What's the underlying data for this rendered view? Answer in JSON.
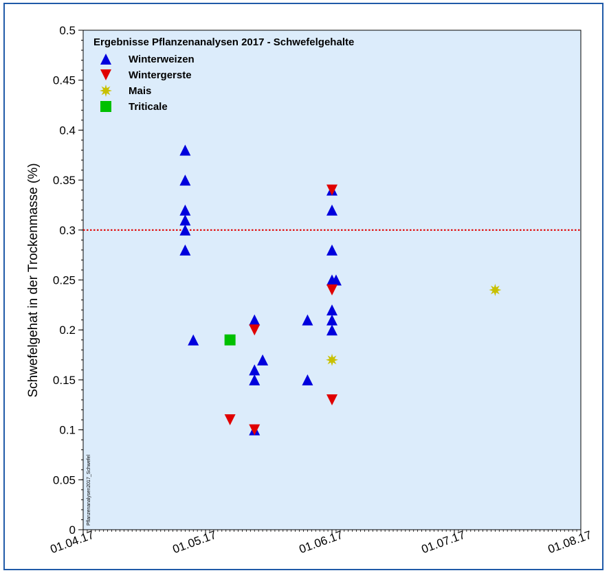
{
  "chart_data": {
    "type": "scatter",
    "title": "Ergebnisse Pflanzenanalysen 2017 - Schwefelgehalte",
    "ylabel": "Schwefelgehat in der Trockenmasse (%)",
    "xlabel": "",
    "side_note": "Pflanzenanalysen2017_Schwefel",
    "x_ticks": [
      "01.04.17",
      "01.05.17",
      "01.06.17",
      "01.07.17",
      "01.08.17"
    ],
    "xlim": [
      "2017-04-01",
      "2017-08-01"
    ],
    "ylim": [
      0,
      0.5
    ],
    "y_ticks": [
      "0",
      "0.05",
      "0.1",
      "0.15",
      "0.2",
      "0.25",
      "0.3",
      "0.35",
      "0.4",
      "0.45",
      "0.5"
    ],
    "reference_line": {
      "y": 0.3,
      "color": "#e00000",
      "style": "dotted"
    },
    "plot_background": "#dcecfb",
    "legend_placement": "top-left",
    "series": [
      {
        "name": "Winterweizen",
        "marker": "triangle-up",
        "color": "#0000dd",
        "points": [
          {
            "x": "2017-04-26",
            "y": 0.38
          },
          {
            "x": "2017-04-26",
            "y": 0.35
          },
          {
            "x": "2017-04-26",
            "y": 0.32
          },
          {
            "x": "2017-04-26",
            "y": 0.31
          },
          {
            "x": "2017-04-26",
            "y": 0.3
          },
          {
            "x": "2017-04-26",
            "y": 0.28
          },
          {
            "x": "2017-04-28",
            "y": 0.19
          },
          {
            "x": "2017-05-13",
            "y": 0.21
          },
          {
            "x": "2017-05-13",
            "y": 0.16
          },
          {
            "x": "2017-05-13",
            "y": 0.15
          },
          {
            "x": "2017-05-13",
            "y": 0.1
          },
          {
            "x": "2017-05-15",
            "y": 0.17
          },
          {
            "x": "2017-05-26",
            "y": 0.21
          },
          {
            "x": "2017-05-26",
            "y": 0.15
          },
          {
            "x": "2017-06-01",
            "y": 0.34
          },
          {
            "x": "2017-06-01",
            "y": 0.32
          },
          {
            "x": "2017-06-01",
            "y": 0.28
          },
          {
            "x": "2017-06-01",
            "y": 0.25
          },
          {
            "x": "2017-06-02",
            "y": 0.25
          },
          {
            "x": "2017-06-01",
            "y": 0.22
          },
          {
            "x": "2017-06-01",
            "y": 0.21
          },
          {
            "x": "2017-06-01",
            "y": 0.2
          }
        ]
      },
      {
        "name": "Wintergerste",
        "marker": "triangle-down",
        "color": "#e00000",
        "points": [
          {
            "x": "2017-05-07",
            "y": 0.11
          },
          {
            "x": "2017-05-13",
            "y": 0.2
          },
          {
            "x": "2017-05-13",
            "y": 0.1
          },
          {
            "x": "2017-06-01",
            "y": 0.34
          },
          {
            "x": "2017-06-01",
            "y": 0.24
          },
          {
            "x": "2017-06-01",
            "y": 0.13
          }
        ]
      },
      {
        "name": "Mais",
        "marker": "star",
        "color": "#c8c000",
        "points": [
          {
            "x": "2017-06-01",
            "y": 0.17
          },
          {
            "x": "2017-07-11",
            "y": 0.24
          }
        ]
      },
      {
        "name": "Triticale",
        "marker": "square",
        "color": "#00c000",
        "points": [
          {
            "x": "2017-05-07",
            "y": 0.19
          }
        ]
      }
    ]
  }
}
